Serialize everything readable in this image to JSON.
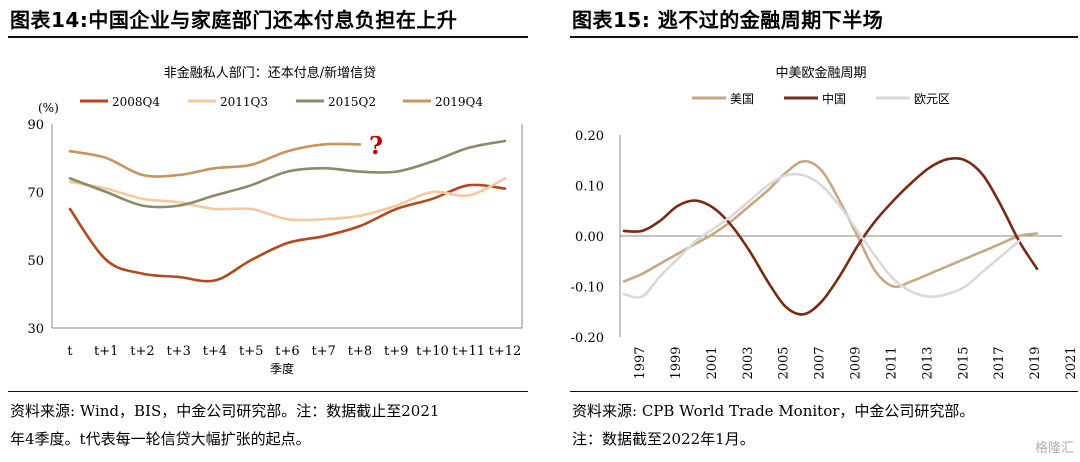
{
  "left_panel": {
    "figure_title": "图表14:中国企业与家庭部门还本付息负担在上升",
    "source_line1": "资料来源: Wind，BIS，中金公司研究部。注：数据截止至2021",
    "source_line2": "年4季度。t代表每一轮信贷大幅扩张的起点。"
  },
  "right_panel": {
    "figure_title": "图表15: 逃不过的金融周期下半场",
    "source_line1": "资料来源: CPB World Trade Monitor，中金公司研究部。",
    "source_line2": "注：数据截至2022年1月。"
  },
  "watermark": "格隆汇",
  "chart_data": [
    {
      "type": "line",
      "title": "非金融私人部门：还本付息/新增信贷",
      "unit_label": "(%)",
      "xlabel": "季度",
      "categories": [
        "t",
        "t+1",
        "t+2",
        "t+3",
        "t+4",
        "t+5",
        "t+6",
        "t+7",
        "t+8",
        "t+9",
        "t+10",
        "t+11",
        "t+12"
      ],
      "ylim": [
        30,
        90
      ],
      "yticks": [
        30,
        50,
        70,
        90
      ],
      "grid": false,
      "legend_position": "top",
      "annotation": "?",
      "annotation_color": "#c00000",
      "series": [
        {
          "name": "2008Q4",
          "color": "#b5471b",
          "values": [
            65,
            50,
            46,
            45,
            44,
            50,
            55,
            57,
            60,
            65,
            68,
            72,
            71
          ]
        },
        {
          "name": "2011Q3",
          "color": "#f5c8a0",
          "values": [
            73,
            71,
            68,
            67,
            65,
            65,
            62,
            62,
            63,
            66,
            70,
            69,
            74
          ]
        },
        {
          "name": "2015Q2",
          "color": "#8c8a68",
          "values": [
            74,
            70,
            66,
            66,
            69,
            72,
            76,
            77,
            76,
            76,
            79,
            83,
            85
          ]
        },
        {
          "name": "2019Q4",
          "color": "#c8955c",
          "values": [
            82,
            80,
            75,
            75,
            77,
            78,
            82,
            84,
            84,
            null,
            null,
            null,
            null
          ]
        }
      ]
    },
    {
      "type": "line",
      "title": "中美欧金融周期",
      "x": [
        1997,
        1998,
        1999,
        2000,
        2001,
        2002,
        2003,
        2004,
        2005,
        2006,
        2007,
        2008,
        2009,
        2010,
        2011,
        2012,
        2013,
        2014,
        2015,
        2016,
        2017,
        2018,
        2019,
        2020,
        2021,
        2022
      ],
      "xticks": [
        "1997",
        "1999",
        "2001",
        "2003",
        "2005",
        "2007",
        "2009",
        "2011",
        "2013",
        "2015",
        "2017",
        "2019",
        "2021"
      ],
      "ylim": [
        -0.2,
        0.2
      ],
      "yticks": [
        "0.20",
        "0.10",
        "0.00",
        "-0.10",
        "-0.20"
      ],
      "grid": false,
      "legend_position": "top",
      "series": [
        {
          "name": "美国",
          "color": "#c8a882",
          "values": [
            -0.09,
            -0.075,
            -0.055,
            -0.035,
            -0.015,
            0.005,
            0.03,
            0.06,
            0.09,
            0.125,
            0.148,
            0.13,
            0.07,
            0.0,
            -0.07,
            -0.1,
            -0.09,
            -0.075,
            -0.06,
            -0.045,
            -0.03,
            -0.015,
            0.0,
            0.005,
            null,
            null
          ]
        },
        {
          "name": "中国",
          "color": "#7a2a12",
          "values": [
            0.01,
            0.01,
            0.03,
            0.06,
            0.07,
            0.055,
            0.02,
            -0.03,
            -0.09,
            -0.14,
            -0.155,
            -0.13,
            -0.08,
            -0.02,
            0.03,
            0.07,
            0.105,
            0.135,
            0.152,
            0.15,
            0.12,
            0.06,
            -0.01,
            -0.065,
            null,
            null
          ]
        },
        {
          "name": "欧元区",
          "color": "#d9d9d9",
          "values": [
            -0.115,
            -0.12,
            -0.08,
            -0.045,
            -0.01,
            0.015,
            0.04,
            0.07,
            0.1,
            0.12,
            0.12,
            0.1,
            0.06,
            0.01,
            -0.04,
            -0.085,
            -0.11,
            -0.12,
            -0.115,
            -0.1,
            -0.07,
            -0.04,
            -0.01,
            null,
            null,
            null
          ]
        }
      ]
    }
  ]
}
